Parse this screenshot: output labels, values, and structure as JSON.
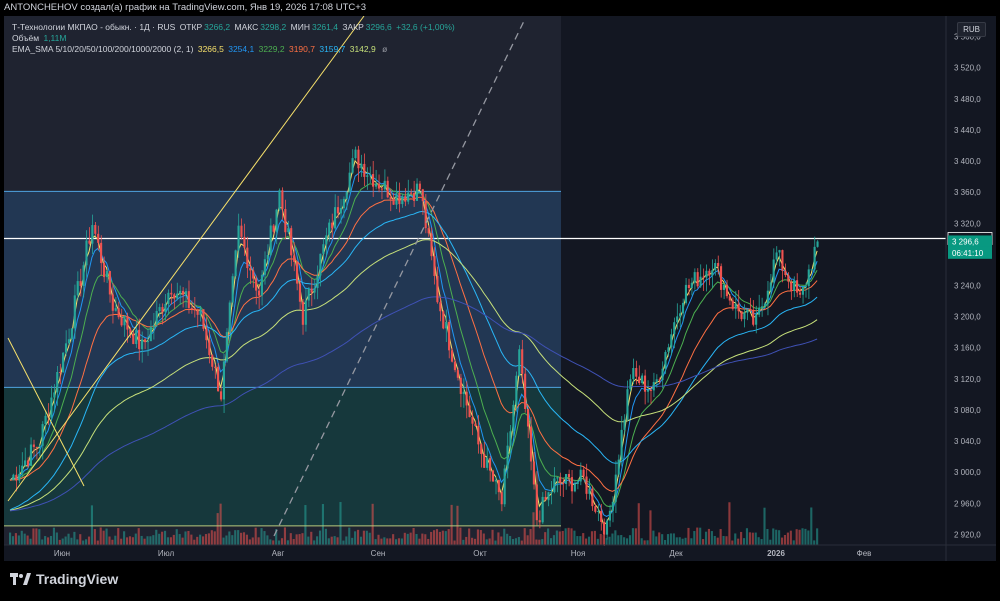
{
  "header": {
    "attribution": "ANTONCHEHOV создал(а) график на TradingView.com, Янв 19, 2026 17:08 UTC+3"
  },
  "legend": {
    "symbol": "Т-Технологии МКПАО - обыкн. · 1Д · RUS",
    "open_label": "ОТКР",
    "open_value": "3266,2",
    "high_label": "МАКС",
    "high_value": "3298,2",
    "low_label": "МИН",
    "low_value": "3261,4",
    "close_label": "ЗАКР",
    "close_value": "3296,6",
    "change": "+32,6 (+1,00%)",
    "volume_label": "Объём",
    "volume_value": "1,11M",
    "ema_label": "EMA_SMA 5/10/20/50/100/200/1000/2000 (2, 1)",
    "ema_values": [
      "3266,5",
      "3254,1",
      "3229,2",
      "3190,7",
      "3159,7",
      "3142,9",
      "",
      "ø"
    ]
  },
  "currency": "RUB",
  "colors": {
    "background": "#131722",
    "up": "#26a69a",
    "down": "#ef5350",
    "ema5": "#f7e16b",
    "ema10": "#2196f3",
    "ema20": "#4caf50",
    "ema50": "#ff7043",
    "ema100": "#29b6f6",
    "ema200": "#c6e07a",
    "ema1000": "#3f51b5",
    "hline_blue": "#4fa3e0",
    "hline_white": "#ffffff"
  },
  "chart_data": {
    "type": "candlestick",
    "y_axis": {
      "min": 2900,
      "max": 3580,
      "ticks": [
        "3 560,0",
        "3 520,0",
        "3 480,0",
        "3 440,0",
        "3 400,0",
        "3 360,0",
        "3 320,0",
        "3 280,0",
        "3 240,0",
        "3 200,0",
        "3 160,0",
        "3 120,0",
        "3 080,0",
        "3 040,0",
        "3 000,0",
        "2 960,0",
        "2 920,0"
      ]
    },
    "x_axis": {
      "labels": [
        "Июн",
        "Июл",
        "Авг",
        "Сен",
        "Окт",
        "Ноя",
        "Дек",
        "2026",
        "Фев"
      ]
    },
    "price_labels": [
      {
        "value": "3 300,4",
        "price": 3300.4,
        "style": "white"
      },
      {
        "value": "3 296,6",
        "price": 3296.6,
        "style": "green"
      },
      {
        "value": "06:41:10",
        "price": 3282,
        "style": "green"
      }
    ],
    "horizontal_levels": [
      3361,
      3300.4,
      3109,
      2931
    ],
    "shaded_zones": [
      {
        "from": 3109,
        "to": 3361,
        "color": "blue"
      },
      {
        "from": 2931,
        "to": 3109,
        "color": "teal"
      }
    ],
    "last_close": 3296.6
  }
}
